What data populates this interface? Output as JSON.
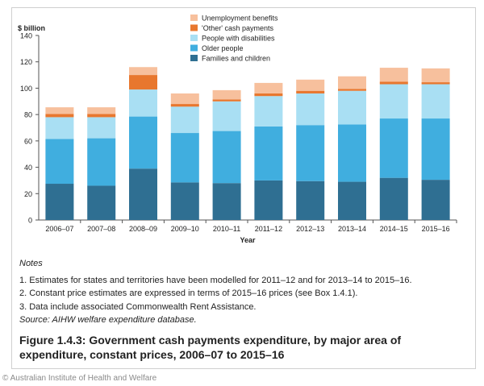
{
  "chart_data": {
    "type": "bar",
    "stacked": true,
    "ylabel": "$ billion",
    "xlabel": "Year",
    "ylim": [
      0,
      140
    ],
    "yticks": [
      0,
      20,
      40,
      60,
      80,
      100,
      120,
      140
    ],
    "legend_position": "top-center",
    "categories": [
      "2006–07",
      "2007–08",
      "2008–09",
      "2009–10",
      "2010–11",
      "2011–12",
      "2012–13",
      "2013–14",
      "2014–15",
      "2015–16"
    ],
    "series": [
      {
        "name": "Families and children",
        "color": "#2f6f92",
        "values": [
          27.5,
          26,
          39,
          28.5,
          28,
          30,
          29.5,
          29,
          32,
          30.5
        ]
      },
      {
        "name": "Older people",
        "color": "#40aedf",
        "values": [
          34,
          36,
          39.5,
          37.5,
          39.5,
          41,
          42.5,
          43.5,
          45,
          46.5
        ]
      },
      {
        "name": "People with disabilities",
        "color": "#a9dff3",
        "values": [
          16.5,
          16,
          20.5,
          20,
          22.5,
          23,
          24,
          25.5,
          26,
          26
        ]
      },
      {
        "name": "'Other' cash payments",
        "color": "#e8772e",
        "values": [
          2.5,
          2.5,
          11,
          2,
          1.5,
          2,
          2,
          1.5,
          2,
          1.5
        ]
      },
      {
        "name": "Unemployment benefits",
        "color": "#f7c09d",
        "values": [
          5,
          5,
          6,
          8,
          7,
          8,
          8.5,
          9.5,
          10.5,
          10.5
        ]
      }
    ],
    "legend_order": [
      "Unemployment benefits",
      "'Other' cash payments",
      "People with disabilities",
      "Older people",
      "Families and children"
    ]
  },
  "notes": {
    "title": "Notes",
    "items": [
      "1.  Estimates for states and territories have been modelled for 2011–12 and for 2013–14 to 2015–16.",
      "2.  Constant price estimates are expressed in terms of 2015–16 prices (see Box 1.4.1).",
      "3.  Data include associated Commonwealth Rent Assistance."
    ],
    "source": "Source: AIHW welfare expenditure database."
  },
  "caption": "Figure 1.4.3: Government cash payments expenditure, by major area of expenditure, constant prices, 2006–07 to 2015–16",
  "credit": "© Australian Institute of Health and Welfare"
}
